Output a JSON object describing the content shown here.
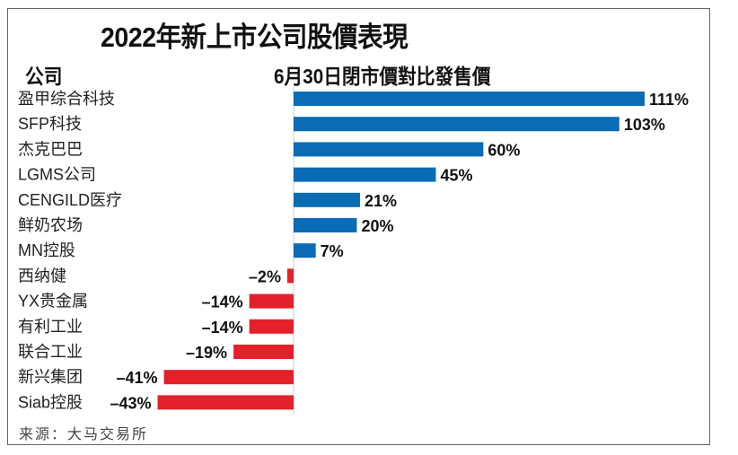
{
  "chart_data": {
    "type": "bar",
    "orientation": "horizontal",
    "title": "2022年新上市公司股價表現",
    "category_header": "公司",
    "value_header": "6月30日閉市價對比發售價",
    "categories": [
      "盈甲综合科技",
      "SFP科技",
      "杰克巴巴",
      "LGMS公司",
      "CENGILD医疗",
      "鲜奶农场",
      "MN控股",
      "西纳健",
      "YX贵金属",
      "有利工业",
      "联合工业",
      "新兴集团",
      "Siab控股"
    ],
    "values": [
      111,
      103,
      60,
      45,
      21,
      20,
      7,
      -2,
      -14,
      -14,
      -19,
      -41,
      -43
    ],
    "labels": [
      "111%",
      "103%",
      "60%",
      "45%",
      "21%",
      "20%",
      "7%",
      "–2%",
      "–14%",
      "–14%",
      "–19%",
      "–41%",
      "–43%"
    ],
    "unit": "%",
    "xlim": [
      -43,
      111
    ],
    "colors": {
      "positive": "#0a6cb4",
      "negative": "#e3212a"
    },
    "source": "来源：大马交易所"
  }
}
